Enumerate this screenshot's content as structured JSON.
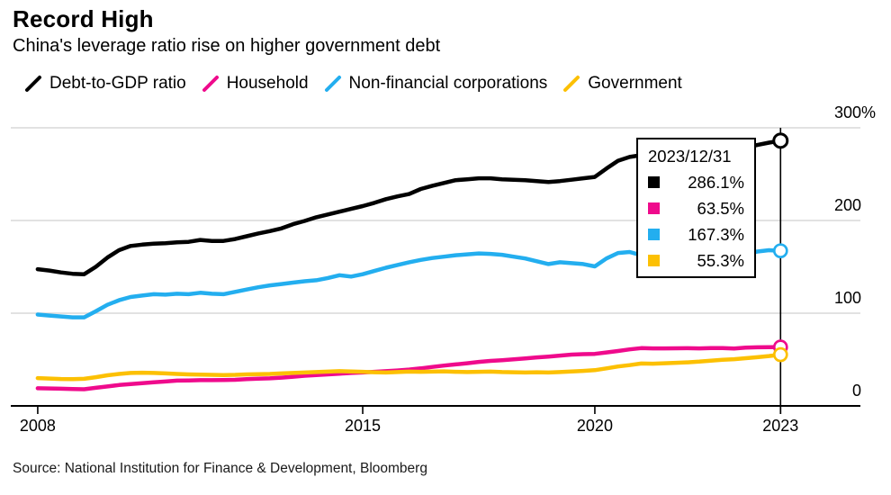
{
  "header": {
    "title": "Record High",
    "subtitle": "China's leverage ratio rise on higher government debt"
  },
  "legend": {
    "items": [
      {
        "label": "Debt-to-GDP ratio",
        "color": "#000000"
      },
      {
        "label": "Household",
        "color": "#ef0a8c"
      },
      {
        "label": "Non-financial corporations",
        "color": "#23aeef"
      },
      {
        "label": "Government",
        "color": "#fcc003"
      }
    ]
  },
  "tooltip": {
    "date": "2023/12/31",
    "rows": [
      {
        "series": "Debt-to-GDP ratio",
        "color": "#000000",
        "value": "286.1%"
      },
      {
        "series": "Household",
        "color": "#ef0a8c",
        "value": "63.5%"
      },
      {
        "series": "Non-financial corporations",
        "color": "#23aeef",
        "value": "167.3%"
      },
      {
        "series": "Government",
        "color": "#fcc003",
        "value": "55.3%"
      }
    ]
  },
  "source": "Source: National Institution for Finance & Development, Bloomberg",
  "colors": {
    "grid": "#d8d8d8",
    "axis": "#000000",
    "background": "#ffffff",
    "text": "#000000"
  },
  "chart_data": {
    "type": "line",
    "title": "Record High",
    "subtitle": "China's leverage ratio rise on higher government debt",
    "x_unit": "quarter-end, years",
    "x_start": 2008.0,
    "x_step": 0.25,
    "xlim": [
      2007.42,
      2025.72
    ],
    "ylim": [
      0,
      300
    ],
    "grid": "horizontal",
    "legend_position": "top",
    "yticks": [
      {
        "label": "0",
        "value": 0
      },
      {
        "label": "100",
        "value": 100
      },
      {
        "label": "200",
        "value": 200
      },
      {
        "label": "300%",
        "value": 300
      }
    ],
    "xticks": [
      {
        "label": "2008",
        "t": 2008
      },
      {
        "label": "2015",
        "t": 2015
      },
      {
        "label": "2020",
        "t": 2020
      },
      {
        "label": "2023",
        "t": 2024
      }
    ],
    "crosshair_t": 2024.0,
    "crosshair_date": "2023/12/31",
    "series": [
      {
        "name": "Debt-to-GDP ratio",
        "color": "#000000",
        "values": [
          147.5,
          146,
          144,
          142.5,
          142,
          150,
          160,
          168,
          172.5,
          174,
          175,
          175.5,
          176.5,
          177,
          179,
          178,
          178,
          180,
          183,
          186,
          188.5,
          191.5,
          196,
          199.5,
          203.5,
          206.5,
          209.5,
          212.5,
          215.5,
          219,
          223,
          226,
          228.5,
          234,
          237.5,
          240.5,
          243.5,
          244.5,
          245.5,
          245.5,
          244.5,
          244,
          243.5,
          242.5,
          241.5,
          242.5,
          244,
          245.5,
          247,
          256,
          264.5,
          268.5,
          270.5,
          268,
          266,
          264.5,
          263.8,
          267.5,
          270.5,
          272.5,
          274.5,
          278.5,
          281.5,
          284,
          286.1
        ]
      },
      {
        "name": "Household",
        "color": "#ef0a8c",
        "values": [
          19,
          18.8,
          18.5,
          18.2,
          18,
          19.5,
          21,
          22.5,
          23.5,
          24.5,
          25.5,
          26.3,
          27.3,
          27.5,
          27.8,
          27.8,
          28,
          28.2,
          28.8,
          29.3,
          29.7,
          30.5,
          31.5,
          32.5,
          33.3,
          34,
          34.8,
          35.5,
          36,
          36.8,
          37.5,
          38.3,
          39.2,
          40.5,
          42,
          43.5,
          44.8,
          46,
          47.5,
          48.5,
          49.3,
          50.3,
          51.3,
          52.3,
          53.2,
          54.3,
          55.3,
          55.8,
          56.1,
          57.7,
          59.2,
          61,
          62.3,
          62,
          62,
          62.1,
          62.2,
          62,
          62.3,
          62.4,
          61.9,
          62.8,
          63.2,
          63.4,
          63.5
        ]
      },
      {
        "name": "Non-financial corporations",
        "color": "#23aeef",
        "values": [
          98.5,
          97.5,
          96.5,
          95.5,
          95.5,
          102,
          109,
          114,
          117.5,
          119,
          120.5,
          120,
          121,
          120.5,
          122,
          121,
          120.5,
          123,
          125.5,
          128,
          130,
          131.5,
          133,
          134.5,
          135.5,
          138,
          141,
          139.5,
          142,
          145.5,
          149,
          152,
          155,
          157.5,
          159.5,
          161,
          162.5,
          163.5,
          164.5,
          164,
          163,
          161,
          159,
          156,
          153,
          155,
          154,
          153,
          150.5,
          159,
          165,
          166,
          162.5,
          158.5,
          156.5,
          155,
          154.5,
          157,
          158.5,
          160,
          161,
          164,
          166.5,
          168,
          167.3
        ]
      },
      {
        "name": "Government",
        "color": "#fcc003",
        "values": [
          30,
          29.5,
          29,
          28.8,
          29.2,
          31,
          33,
          34.5,
          35.5,
          35.8,
          35.5,
          35,
          34.5,
          34,
          33.7,
          33.5,
          33.3,
          33.5,
          34,
          34.3,
          34.5,
          35,
          35.5,
          36,
          36.5,
          37,
          37.5,
          37.2,
          36.8,
          36.3,
          36,
          36.5,
          37,
          36.8,
          37,
          37.3,
          36.8,
          36.5,
          36.8,
          37,
          36.5,
          36.3,
          36,
          36.3,
          36,
          36.5,
          37.2,
          37.8,
          38.5,
          40.5,
          42.5,
          44,
          45.7,
          45.5,
          46,
          46.5,
          47,
          47.8,
          48.8,
          49.7,
          50.4,
          51.5,
          52.5,
          53.8,
          55.3
        ]
      }
    ]
  }
}
